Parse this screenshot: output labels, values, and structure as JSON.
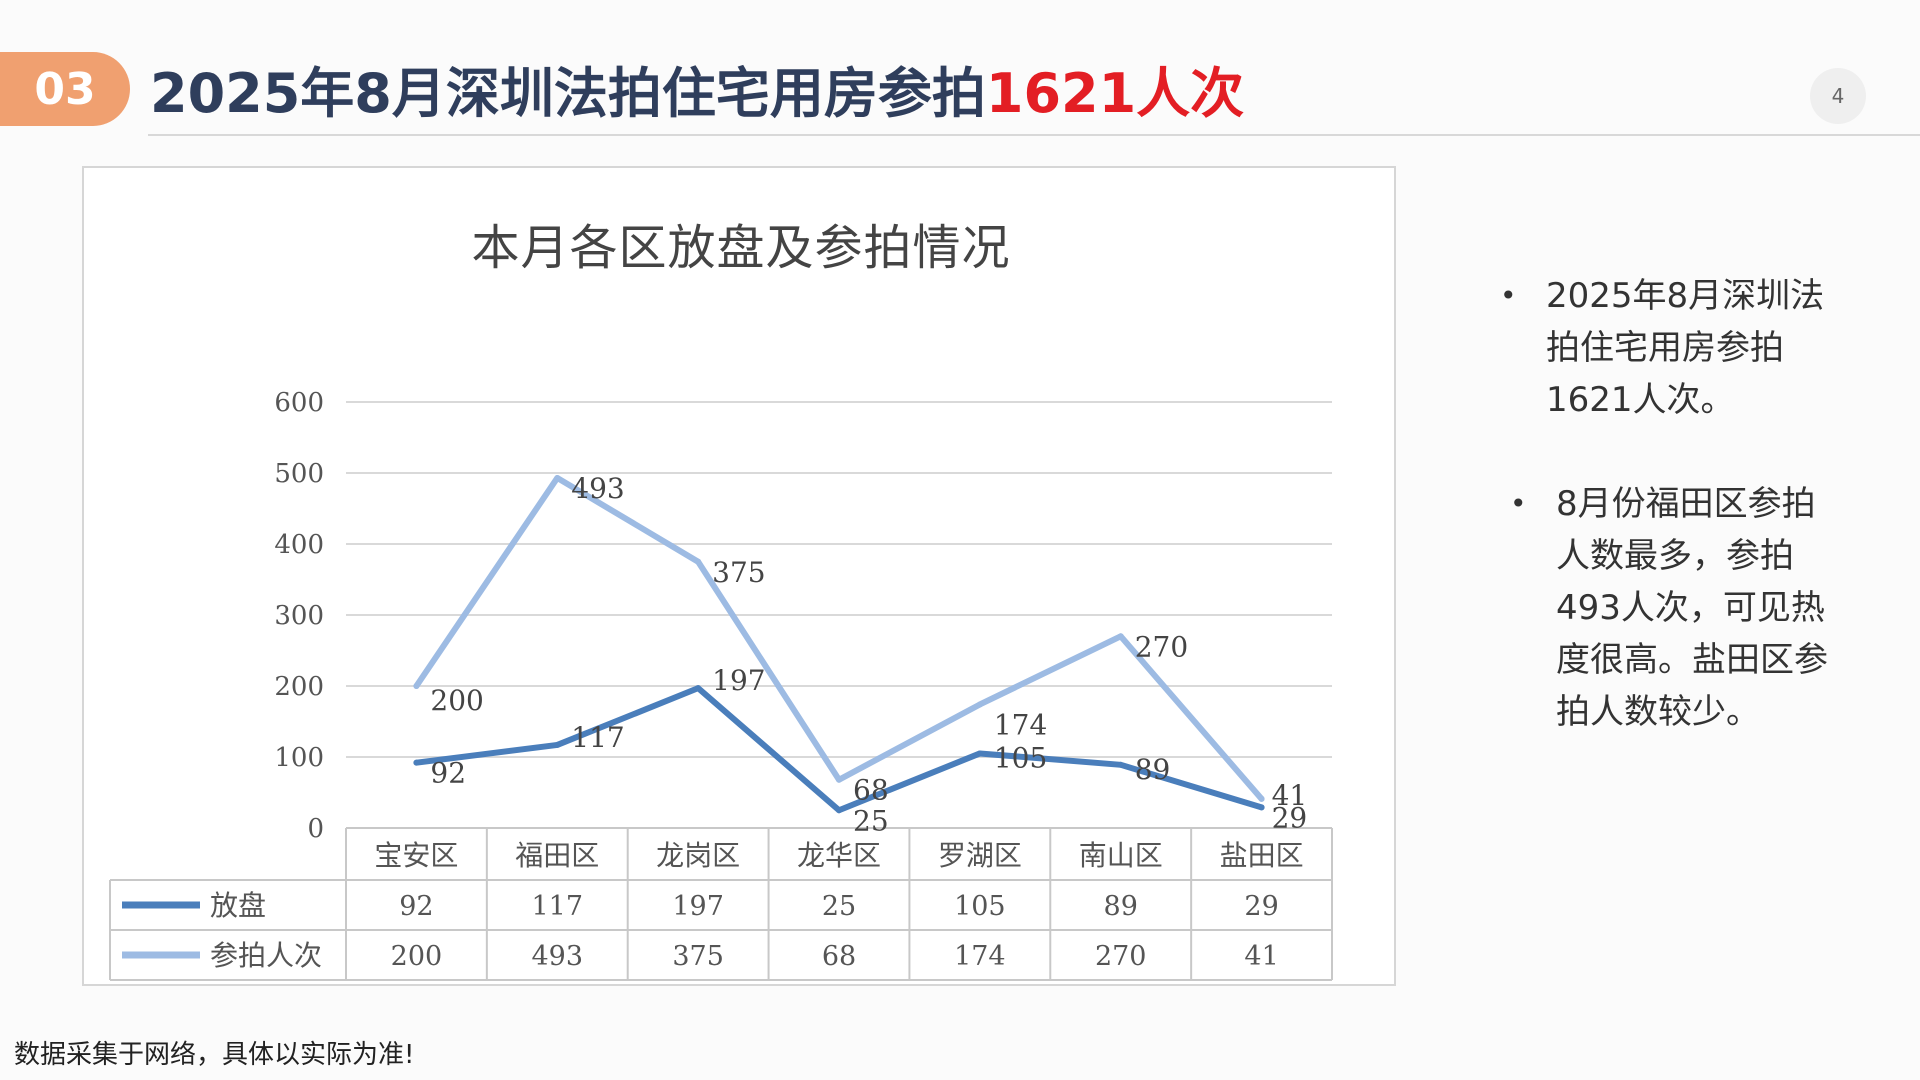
{
  "header": {
    "section_number": "03",
    "title_main": "2025年8月深圳法拍住宅用房参拍",
    "title_highlight": "1621人次",
    "page_number": "4"
  },
  "colors": {
    "accent_badge": "#f0a070",
    "title_text": "#2f3e5c",
    "highlight": "#e31e24",
    "series_dark": "#4a7ebb",
    "series_light": "#9dbbe3"
  },
  "bullets": [
    "2025年8月深圳法拍住宅用房参拍1621人次。",
    "8月份福田区参拍人数最多，参拍493人次，可见热度很高。盐田区参拍人数较少。"
  ],
  "footer_note": "数据采集于网络，具体以实际为准!",
  "chart_data": {
    "type": "line",
    "title": "本月各区放盘及参拍情况",
    "categories": [
      "宝安区",
      "福田区",
      "龙岗区",
      "龙华区",
      "罗湖区",
      "南山区",
      "盐田区"
    ],
    "series": [
      {
        "name": "放盘",
        "values": [
          92,
          117,
          197,
          25,
          105,
          89,
          29
        ],
        "color": "#4a7ebb"
      },
      {
        "name": "参拍人次",
        "values": [
          200,
          493,
          375,
          68,
          174,
          270,
          41
        ],
        "color": "#9dbbe3"
      }
    ],
    "ylim": [
      0,
      600
    ],
    "yticks": [
      0,
      100,
      200,
      300,
      400,
      500,
      600
    ],
    "grid": true,
    "data_table": true,
    "legend": "data-table"
  }
}
